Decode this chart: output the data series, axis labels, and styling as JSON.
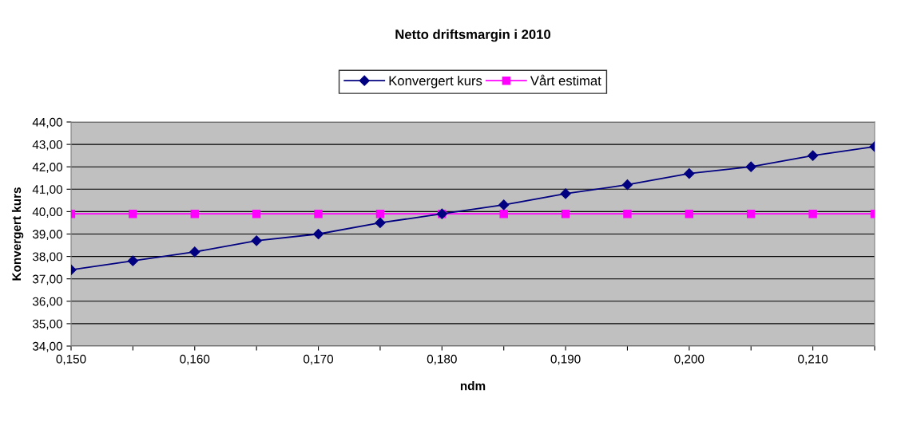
{
  "chart_data": {
    "type": "line",
    "title": "Netto driftsmargin i 2010",
    "xlabel": "ndm",
    "ylabel": "Konvergert kurs",
    "x": [
      0.15,
      0.155,
      0.16,
      0.165,
      0.17,
      0.175,
      0.18,
      0.185,
      0.19,
      0.195,
      0.2,
      0.205,
      0.21,
      0.215
    ],
    "series": [
      {
        "name": "Konvergert kurs",
        "color": "#000080",
        "marker": "diamond",
        "values": [
          37.4,
          37.8,
          38.2,
          38.7,
          39.0,
          39.5,
          39.9,
          40.3,
          40.8,
          41.2,
          41.7,
          42.0,
          42.5,
          42.9
        ]
      },
      {
        "name": "Vårt estimat",
        "color": "#ff00ff",
        "marker": "square",
        "values": [
          39.9,
          39.9,
          39.9,
          39.9,
          39.9,
          39.9,
          39.9,
          39.9,
          39.9,
          39.9,
          39.9,
          39.9,
          39.9,
          39.9
        ]
      }
    ],
    "xlim": [
      0.15,
      0.215
    ],
    "xticks": [
      {
        "value": 0.15,
        "label": "0,150"
      },
      {
        "value": 0.155,
        "label": null
      },
      {
        "value": 0.16,
        "label": "0,160"
      },
      {
        "value": 0.165,
        "label": null
      },
      {
        "value": 0.17,
        "label": "0,170"
      },
      {
        "value": 0.175,
        "label": null
      },
      {
        "value": 0.18,
        "label": "0,180"
      },
      {
        "value": 0.185,
        "label": null
      },
      {
        "value": 0.19,
        "label": "0,190"
      },
      {
        "value": 0.195,
        "label": null
      },
      {
        "value": 0.2,
        "label": "0,200"
      },
      {
        "value": 0.205,
        "label": null
      },
      {
        "value": 0.21,
        "label": "0,210"
      },
      {
        "value": 0.215,
        "label": null
      }
    ],
    "ylim": [
      34,
      44
    ],
    "yticks": [
      {
        "value": 34,
        "label": "34,00"
      },
      {
        "value": 35,
        "label": "35,00"
      },
      {
        "value": 36,
        "label": "36,00"
      },
      {
        "value": 37,
        "label": "37,00"
      },
      {
        "value": 38,
        "label": "38,00"
      },
      {
        "value": 39,
        "label": "39,00"
      },
      {
        "value": 40,
        "label": "40,00"
      },
      {
        "value": 41,
        "label": "41,00"
      },
      {
        "value": 42,
        "label": "42,00"
      },
      {
        "value": 43,
        "label": "43,00"
      },
      {
        "value": 44,
        "label": "44,00"
      }
    ],
    "grid": "y",
    "legend": "top",
    "line_style": "solid"
  }
}
